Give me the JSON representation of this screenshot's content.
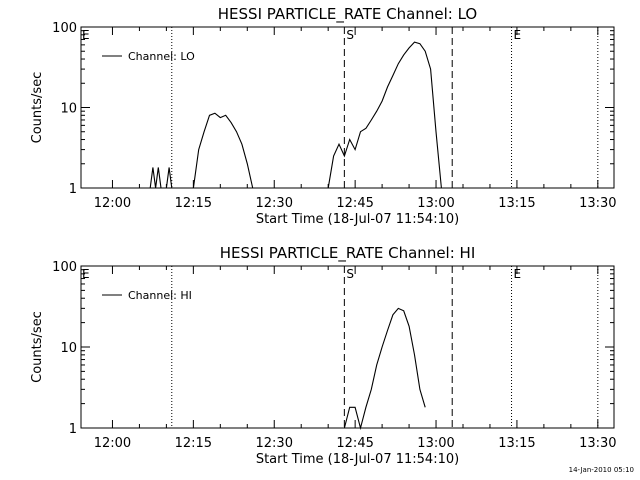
{
  "footer": {
    "stamp": "14-Jan-2010 05:10"
  },
  "chart_data": [
    {
      "type": "line",
      "title": "HESSI PARTICLE_RATE Channel: LO",
      "xlabel": "Start Time (18-Jul-07 11:54:10)",
      "ylabel": "Counts/sec",
      "yscale": "log",
      "ylim": [
        1,
        100
      ],
      "xlim": [
        "11:54:10",
        "13:33"
      ],
      "x_ticks": [
        "12:00",
        "12:15",
        "12:30",
        "12:45",
        "13:00",
        "13:15",
        "13:30"
      ],
      "y_ticks": [
        "1",
        "10",
        "100"
      ],
      "legend": {
        "entries": [
          "Channel: LO"
        ],
        "position": "top-left"
      },
      "grid": false,
      "markers": [
        {
          "time": "12:11",
          "style": "dotted",
          "label": ""
        },
        {
          "time": "12:43",
          "style": "dashed",
          "label": "S"
        },
        {
          "time": "13:03",
          "style": "dashed",
          "label": ""
        },
        {
          "time": "13:14",
          "style": "dotted",
          "label": "E"
        },
        {
          "time": "13:30",
          "style": "dotted",
          "label": ""
        }
      ],
      "corner_label": "E",
      "series": [
        {
          "name": "Channel: LO",
          "segments": [
            {
              "x": [
                "12:07",
                "12:07.5",
                "12:08",
                "12:08.5",
                "12:09"
              ],
              "y": [
                1,
                1.8,
                1,
                1.8,
                1
              ]
            },
            {
              "x": [
                "12:10",
                "12:10.5",
                "12:11"
              ],
              "y": [
                1,
                1.8,
                1
              ]
            },
            {
              "x": [
                "12:15",
                "12:16",
                "12:17",
                "12:18",
                "12:19",
                "12:20",
                "12:21",
                "12:22",
                "12:23",
                "12:24",
                "12:25",
                "12:26"
              ],
              "y": [
                1,
                3,
                5,
                8,
                8.5,
                7.5,
                8,
                6.5,
                5,
                3.5,
                2,
                1
              ]
            },
            {
              "x": [
                "12:40",
                "12:41",
                "12:42",
                "12:43",
                "12:44",
                "12:45",
                "12:46",
                "12:47",
                "12:48",
                "12:49",
                "12:50",
                "12:51",
                "12:52",
                "12:53",
                "12:54",
                "12:55",
                "12:56",
                "12:57",
                "12:58",
                "12:59",
                "13:00",
                "13:01"
              ],
              "y": [
                1,
                2.5,
                3.5,
                2.5,
                4,
                3,
                5,
                5.5,
                7,
                9,
                12,
                18,
                25,
                35,
                45,
                55,
                65,
                62,
                50,
                30,
                5,
                1
              ]
            }
          ]
        }
      ]
    },
    {
      "type": "line",
      "title": "HESSI PARTICLE_RATE Channel: HI",
      "xlabel": "Start Time (18-Jul-07 11:54:10)",
      "ylabel": "Counts/sec",
      "yscale": "log",
      "ylim": [
        1,
        100
      ],
      "xlim": [
        "11:54:10",
        "13:33"
      ],
      "x_ticks": [
        "12:00",
        "12:15",
        "12:30",
        "12:45",
        "13:00",
        "13:15",
        "13:30"
      ],
      "y_ticks": [
        "1",
        "10",
        "100"
      ],
      "legend": {
        "entries": [
          "Channel: HI"
        ],
        "position": "top-left"
      },
      "grid": false,
      "markers": [
        {
          "time": "12:11",
          "style": "dotted",
          "label": ""
        },
        {
          "time": "12:43",
          "style": "dashed",
          "label": "S"
        },
        {
          "time": "13:03",
          "style": "dashed",
          "label": ""
        },
        {
          "time": "13:14",
          "style": "dotted",
          "label": "E"
        },
        {
          "time": "13:30",
          "style": "dotted",
          "label": ""
        }
      ],
      "corner_label": "E",
      "series": [
        {
          "name": "Channel: HI",
          "segments": [
            {
              "x": [
                "12:43",
                "12:44",
                "12:45",
                "12:46",
                "12:47",
                "12:48",
                "12:49",
                "12:50",
                "12:51",
                "12:52",
                "12:53",
                "12:54",
                "12:55",
                "12:56",
                "12:57",
                "12:58"
              ],
              "y": [
                1,
                1.8,
                1.8,
                1,
                1.8,
                3,
                6,
                10,
                16,
                25,
                30,
                28,
                18,
                8,
                3,
                1.8
              ]
            }
          ]
        }
      ]
    }
  ]
}
